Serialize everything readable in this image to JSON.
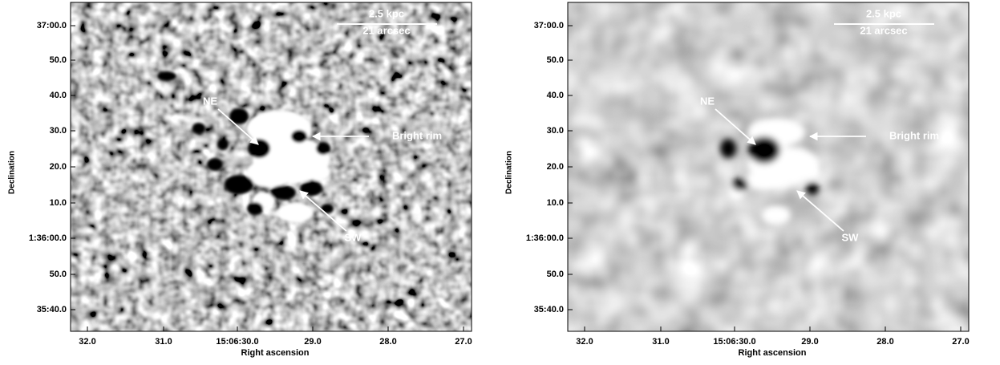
{
  "panels": [
    {
      "x_axis_label": "Right ascension",
      "y_axis_label": "Declination",
      "x_ticks": [
        "32.0",
        "31.0",
        "15:06:30.0",
        "29.0",
        "28.0",
        "27.0"
      ],
      "y_ticks": [
        "37:00.0",
        "50.0",
        "40.0",
        "30.0",
        "20.0",
        "10.0",
        "1:36:00.0",
        "50.0",
        "35:40.0"
      ],
      "scale_bar": {
        "top": "2.5 kpc",
        "bottom": "21 arcsec"
      },
      "annotations": {
        "ne": "NE",
        "bright_rim": "Bright rim",
        "sw": "SW"
      }
    },
    {
      "x_axis_label": "Right ascension",
      "y_axis_label": "Declination",
      "x_ticks": [
        "32.0",
        "31.0",
        "15:06:30.0",
        "29.0",
        "28.0",
        "27.0"
      ],
      "y_ticks": [
        "37:00.0",
        "50.0",
        "40.0",
        "30.0",
        "20.0",
        "10.0",
        "1:36:00.0",
        "50.0",
        "35:40.0"
      ],
      "scale_bar": {
        "top": "2.5 kpc",
        "bottom": "21 arcsec"
      },
      "annotations": {
        "ne": "NE",
        "bright_rim": "Bright rim",
        "sw": "SW"
      }
    }
  ]
}
